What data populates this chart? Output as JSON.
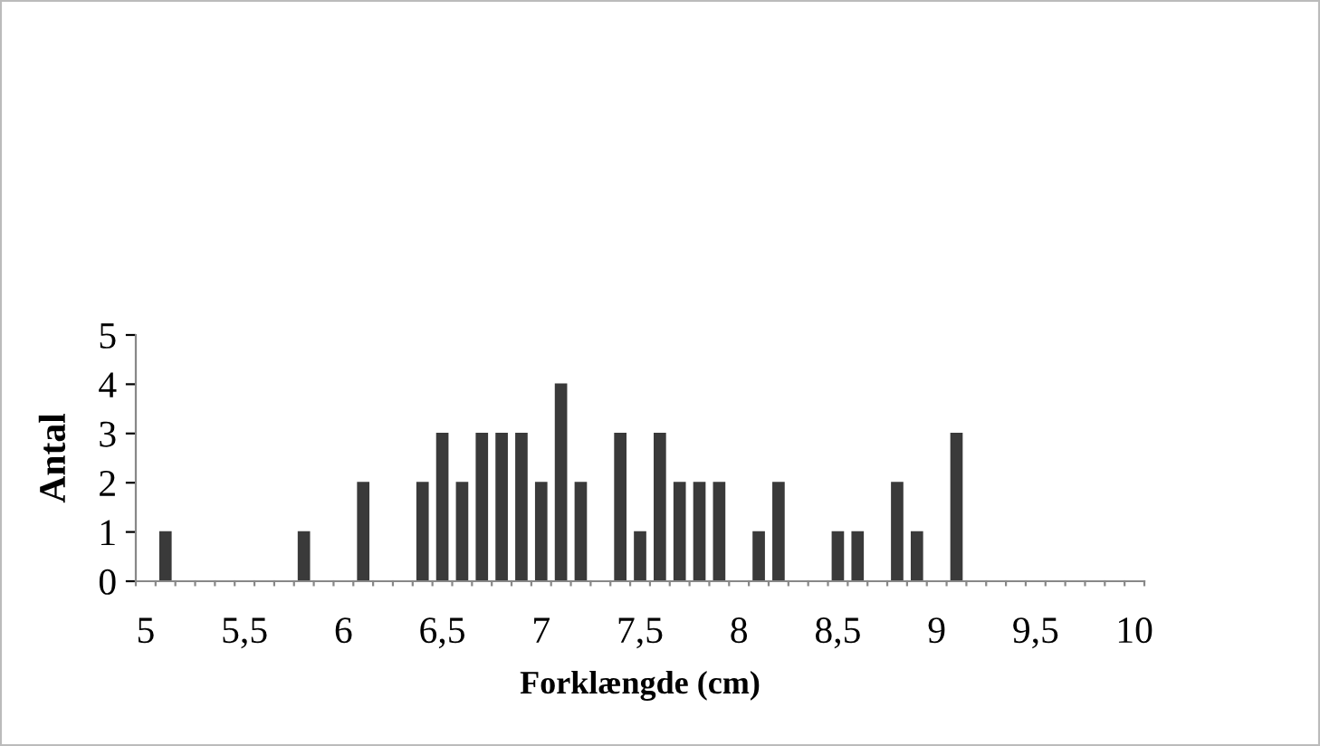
{
  "chart_data": {
    "type": "bar",
    "xlabel": "Forklængde (cm)",
    "ylabel": "Antal",
    "categories": [
      "5",
      null,
      null,
      null,
      null,
      "5,5",
      null,
      null,
      null,
      null,
      "6",
      null,
      null,
      null,
      null,
      "6,5",
      null,
      null,
      null,
      null,
      "7",
      null,
      null,
      null,
      null,
      "7,5",
      null,
      null,
      null,
      null,
      "8",
      null,
      null,
      null,
      null,
      "8,5",
      null,
      null,
      null,
      null,
      "9",
      null,
      null,
      null,
      null,
      "9,5",
      null,
      null,
      null,
      null,
      "10"
    ],
    "values": [
      0,
      1,
      0,
      0,
      0,
      0,
      0,
      0,
      1,
      0,
      0,
      2,
      0,
      0,
      2,
      3,
      2,
      3,
      3,
      3,
      2,
      4,
      2,
      0,
      3,
      1,
      3,
      2,
      2,
      2,
      0,
      1,
      2,
      0,
      0,
      1,
      1,
      0,
      2,
      1,
      0,
      3,
      0,
      0,
      0,
      0,
      0,
      0,
      0,
      0,
      0
    ],
    "color": "#3a3a3a",
    "ylim": [
      0,
      5
    ],
    "yticks": [
      0,
      1,
      2,
      3,
      4,
      5
    ],
    "grid": false,
    "legend": false
  }
}
